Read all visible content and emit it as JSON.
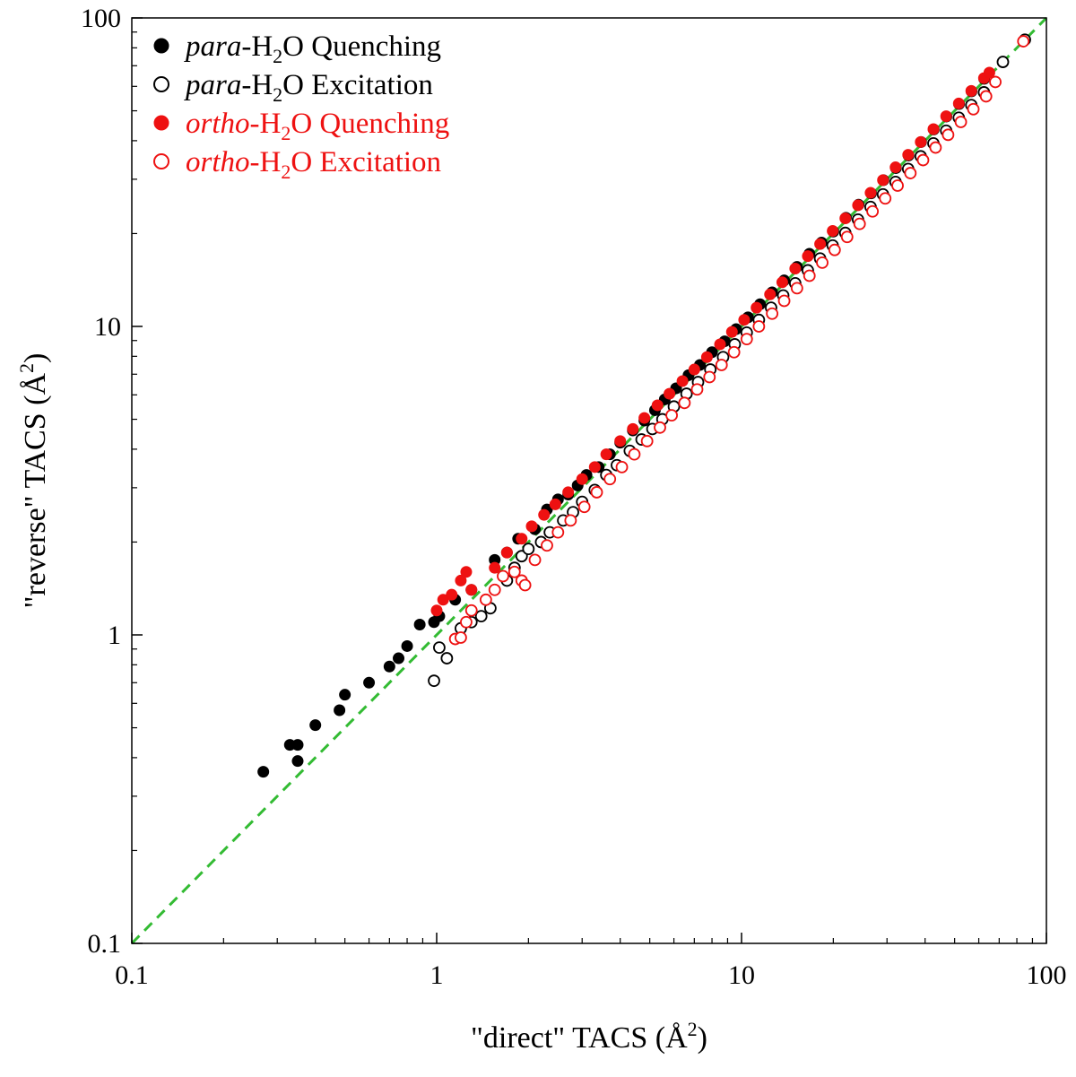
{
  "chart_data": {
    "type": "scatter",
    "title": "",
    "xlabel": {
      "prefix": "\"direct\" TACS (Å",
      "sup": "2",
      "suffix": ")"
    },
    "ylabel": {
      "prefix": "\"reverse\" TACS (Å",
      "sup": "2",
      "suffix": ")"
    },
    "xscale": "log",
    "yscale": "log",
    "xlim": [
      0.1,
      100
    ],
    "ylim": [
      0.1,
      100
    ],
    "xticks": [
      0.1,
      1,
      10,
      100
    ],
    "yticks": [
      0.1,
      1,
      10,
      100
    ],
    "xtick_labels": [
      "0.1",
      "1",
      "10",
      "100"
    ],
    "ytick_labels": [
      "0.1",
      "1",
      "10",
      "100"
    ],
    "grid": false,
    "legend_position": "top-left",
    "reference_line": {
      "label": "y = x",
      "color": "#33bb33",
      "style": "dashed"
    },
    "colors": {
      "para": "#000000",
      "ortho": "#ee1111"
    },
    "legend": [
      {
        "italic": "para",
        "mid": "-H",
        "sub": "2",
        "end": "O Quenching",
        "color": "#000000",
        "marker": "filled"
      },
      {
        "italic": "para",
        "mid": "-H",
        "sub": "2",
        "end": "O Excitation",
        "color": "#000000",
        "marker": "open"
      },
      {
        "italic": "ortho",
        "mid": "-H",
        "sub": "2",
        "end": "O Quenching",
        "color": "#ee1111",
        "marker": "filled"
      },
      {
        "italic": "ortho",
        "mid": "-H",
        "sub": "2",
        "end": "O Excitation",
        "color": "#ee1111",
        "marker": "open"
      }
    ],
    "series": [
      {
        "name": "para-H2O Quenching",
        "color": "#000000",
        "marker": "filled",
        "x": [
          0.27,
          0.33,
          0.35,
          0.35,
          0.4,
          0.48,
          0.5,
          0.6,
          0.7,
          0.75,
          0.8,
          0.88,
          0.98,
          1.02,
          1.15,
          1.3,
          1.55,
          1.7,
          1.85,
          2.1,
          2.3,
          2.5,
          2.7,
          2.9,
          3.1,
          3.4,
          3.7,
          4.0,
          4.4,
          4.8,
          5.2,
          5.6,
          6.1,
          6.7,
          7.3,
          8.0,
          8.8,
          9.6,
          10.5,
          11.5,
          12.6,
          13.8,
          15.2,
          16.7,
          18.3,
          20.0,
          22.0,
          24.2,
          26.6,
          29.2,
          32.1,
          35.3,
          38.8,
          42.7,
          47.0,
          51.7,
          56.8,
          62.5,
          72.0,
          85.0
        ],
        "y": [
          0.36,
          0.44,
          0.44,
          0.39,
          0.51,
          0.57,
          0.64,
          0.7,
          0.79,
          0.84,
          0.92,
          1.08,
          1.1,
          1.15,
          1.3,
          1.4,
          1.75,
          1.85,
          2.05,
          2.2,
          2.55,
          2.75,
          2.85,
          3.05,
          3.3,
          3.5,
          3.85,
          4.2,
          4.6,
          4.95,
          5.35,
          5.8,
          6.3,
          6.95,
          7.5,
          8.25,
          8.95,
          9.8,
          10.7,
          11.8,
          12.9,
          14.1,
          15.6,
          17.2,
          18.7,
          20.3,
          22.5,
          24.8,
          27.0,
          29.8,
          32.6,
          35.8,
          39.6,
          43.5,
          47.9,
          52.6,
          57.8,
          63.5,
          72.0,
          85.0
        ]
      },
      {
        "name": "para-H2O Excitation",
        "color": "#000000",
        "marker": "open",
        "x": [
          0.98,
          1.02,
          1.08,
          1.2,
          1.3,
          1.4,
          1.5,
          1.7,
          1.8,
          1.9,
          2.0,
          2.2,
          2.35,
          2.6,
          2.8,
          3.0,
          3.3,
          3.6,
          3.9,
          4.3,
          4.7,
          5.1,
          5.5,
          6.0,
          6.6,
          7.2,
          7.9,
          8.7,
          9.5,
          10.4,
          11.4,
          12.5,
          13.7,
          15.0,
          16.5,
          18.1,
          19.9,
          21.9,
          24.1,
          26.5,
          29.1,
          32.0,
          35.2,
          38.7,
          42.6,
          46.9,
          51.6,
          56.7,
          62.4,
          72.0,
          85.0
        ],
        "y": [
          0.71,
          0.91,
          0.84,
          1.05,
          1.1,
          1.15,
          1.22,
          1.5,
          1.65,
          1.8,
          1.9,
          2.0,
          2.15,
          2.35,
          2.5,
          2.7,
          2.95,
          3.3,
          3.55,
          3.95,
          4.3,
          4.65,
          5.0,
          5.5,
          6.05,
          6.6,
          7.25,
          7.95,
          8.75,
          9.55,
          10.5,
          11.5,
          12.6,
          13.8,
          15.2,
          16.6,
          18.3,
          20.1,
          22.2,
          24.4,
          26.8,
          29.4,
          32.4,
          35.6,
          39.2,
          43.1,
          47.5,
          52.2,
          57.4,
          72.0,
          85.0
        ]
      },
      {
        "name": "ortho-H2O Quenching",
        "color": "#ee1111",
        "marker": "filled",
        "x": [
          1.0,
          1.05,
          1.12,
          1.2,
          1.25,
          1.3,
          1.55,
          1.7,
          1.9,
          2.05,
          2.25,
          2.45,
          2.7,
          3.0,
          3.3,
          3.6,
          4.0,
          4.4,
          4.8,
          5.3,
          5.8,
          6.4,
          7.0,
          7.7,
          8.5,
          9.3,
          10.2,
          11.2,
          12.4,
          13.6,
          15.0,
          16.5,
          18.1,
          19.9,
          21.9,
          24.1,
          26.5,
          29.1,
          32.0,
          35.2,
          38.7,
          42.6,
          46.9,
          51.6,
          56.7,
          62.4,
          65.0
        ],
        "y": [
          1.2,
          1.3,
          1.35,
          1.5,
          1.6,
          1.4,
          1.65,
          1.85,
          2.05,
          2.25,
          2.45,
          2.65,
          2.9,
          3.2,
          3.5,
          3.85,
          4.25,
          4.65,
          5.05,
          5.55,
          6.05,
          6.65,
          7.25,
          7.95,
          8.75,
          9.6,
          10.5,
          11.5,
          12.7,
          13.9,
          15.4,
          16.9,
          18.5,
          20.4,
          22.4,
          24.7,
          27.1,
          29.8,
          32.8,
          36.0,
          39.6,
          43.6,
          48.0,
          52.8,
          58.0,
          63.8,
          66.5
        ]
      },
      {
        "name": "ortho-H2O Excitation",
        "color": "#ee1111",
        "marker": "open",
        "x": [
          1.15,
          1.2,
          1.25,
          1.3,
          1.45,
          1.55,
          1.65,
          1.8,
          1.9,
          1.95,
          2.1,
          2.3,
          2.5,
          2.75,
          3.05,
          3.35,
          3.7,
          4.05,
          4.45,
          4.9,
          5.4,
          5.9,
          6.5,
          7.15,
          7.85,
          8.6,
          9.45,
          10.4,
          11.4,
          12.6,
          13.8,
          15.2,
          16.7,
          18.4,
          20.2,
          22.2,
          24.4,
          26.9,
          29.6,
          32.5,
          35.8,
          39.4,
          43.3,
          47.6,
          52.4,
          57.6,
          63.4,
          68.0,
          84.0
        ],
        "y": [
          0.97,
          0.98,
          1.1,
          1.2,
          1.3,
          1.4,
          1.55,
          1.6,
          1.5,
          1.45,
          1.75,
          1.95,
          2.15,
          2.35,
          2.6,
          2.9,
          3.2,
          3.5,
          3.85,
          4.25,
          4.7,
          5.15,
          5.65,
          6.25,
          6.85,
          7.5,
          8.25,
          9.1,
          10.0,
          11.0,
          12.1,
          13.3,
          14.6,
          16.1,
          17.7,
          19.5,
          21.5,
          23.6,
          26.0,
          28.6,
          31.4,
          34.6,
          38.0,
          41.8,
          46.0,
          50.6,
          55.7,
          62.0,
          84.0
        ]
      }
    ]
  }
}
